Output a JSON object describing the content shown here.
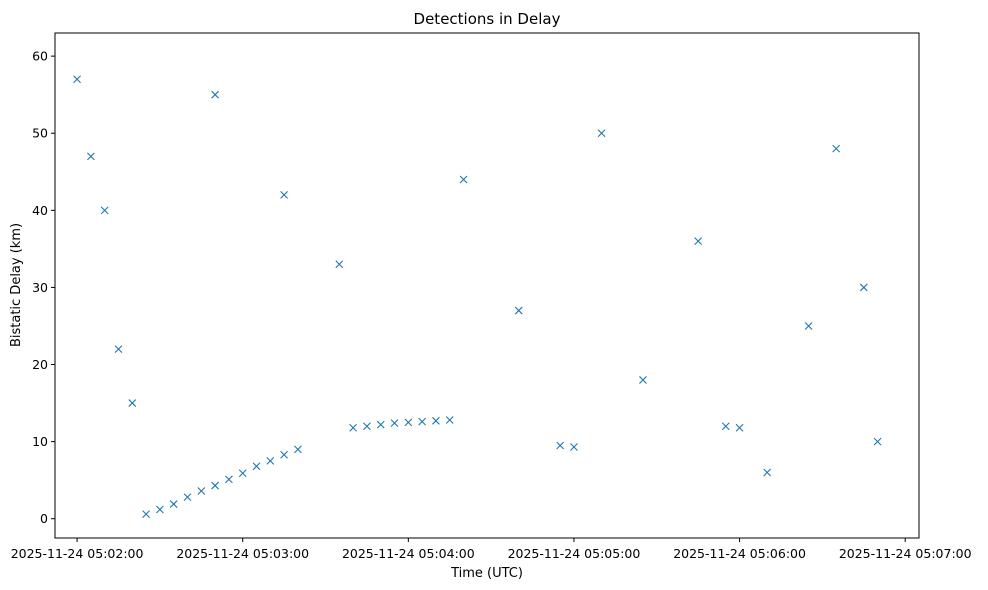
{
  "chart_data": {
    "type": "scatter",
    "title": "Detections in Delay",
    "xlabel": "Time (UTC)",
    "ylabel": "Bistatic Delay (km)",
    "x_ticks": [
      "2025-11-24 05:02:00",
      "2025-11-24 05:03:00",
      "2025-11-24 05:04:00",
      "2025-11-24 05:05:00",
      "2025-11-24 05:06:00",
      "2025-11-24 05:07:00"
    ],
    "y_ticks": [
      "0",
      "10",
      "20",
      "30",
      "40",
      "50",
      "60"
    ],
    "xlim": [
      "2025-11-24 05:01:52",
      "2025-11-24 05:07:05"
    ],
    "ylim": [
      -2.5,
      63
    ],
    "marker": "x",
    "grid": false,
    "color": "#1f77b4",
    "series": [
      {
        "points": [
          [
            "2025-11-24 05:02:25",
            0.6
          ],
          [
            "2025-11-24 05:02:30",
            1.2
          ],
          [
            "2025-11-24 05:02:35",
            1.9
          ],
          [
            "2025-11-24 05:02:40",
            2.8
          ],
          [
            "2025-11-24 05:02:45",
            3.6
          ],
          [
            "2025-11-24 05:02:50",
            4.3
          ],
          [
            "2025-11-24 05:02:55",
            5.1
          ],
          [
            "2025-11-24 05:03:00",
            5.9
          ],
          [
            "2025-11-24 05:03:05",
            6.8
          ],
          [
            "2025-11-24 05:03:10",
            7.5
          ],
          [
            "2025-11-24 05:03:15",
            8.3
          ],
          [
            "2025-11-24 05:03:20",
            9.0
          ],
          [
            "2025-11-24 05:03:40",
            11.8
          ],
          [
            "2025-11-24 05:03:45",
            12.0
          ],
          [
            "2025-11-24 05:03:50",
            12.2
          ],
          [
            "2025-11-24 05:03:55",
            12.4
          ],
          [
            "2025-11-24 05:04:00",
            12.5
          ],
          [
            "2025-11-24 05:04:05",
            12.6
          ],
          [
            "2025-11-24 05:04:10",
            12.7
          ],
          [
            "2025-11-24 05:04:15",
            12.8
          ],
          [
            "2025-11-24 05:04:55",
            9.5
          ],
          [
            "2025-11-24 05:05:00",
            9.3
          ],
          [
            "2025-11-24 05:05:55",
            12.0
          ],
          [
            "2025-11-24 05:06:00",
            11.8
          ],
          [
            "2025-11-24 05:02:00",
            57.0
          ],
          [
            "2025-11-24 05:02:05",
            47.0
          ],
          [
            "2025-11-24 05:02:10",
            40.0
          ],
          [
            "2025-11-24 05:02:15",
            22.0
          ],
          [
            "2025-11-24 05:02:20",
            15.0
          ],
          [
            "2025-11-24 05:02:50",
            55.0
          ],
          [
            "2025-11-24 05:03:15",
            42.0
          ],
          [
            "2025-11-24 05:03:35",
            33.0
          ],
          [
            "2025-11-24 05:04:20",
            44.0
          ],
          [
            "2025-11-24 05:04:40",
            27.0
          ],
          [
            "2025-11-24 05:05:10",
            50.0
          ],
          [
            "2025-11-24 05:05:25",
            18.0
          ],
          [
            "2025-11-24 05:05:45",
            36.0
          ],
          [
            "2025-11-24 05:06:10",
            6.0
          ],
          [
            "2025-11-24 05:06:25",
            25.0
          ],
          [
            "2025-11-24 05:06:35",
            48.0
          ],
          [
            "2025-11-24 05:06:45",
            30.0
          ],
          [
            "2025-11-24 05:06:50",
            10.0
          ]
        ]
      }
    ]
  }
}
